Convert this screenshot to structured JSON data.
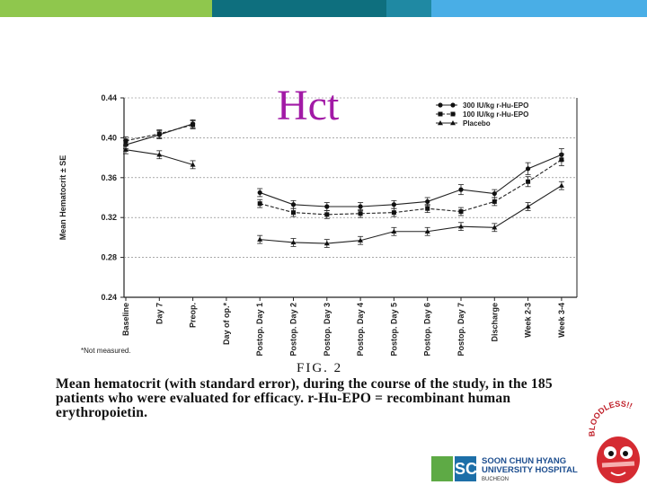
{
  "slide": {
    "title": "Hct",
    "top_bar_colors": [
      "#8fc74d",
      "#0e6f7e",
      "#1f89a3",
      "#49aee6"
    ]
  },
  "chart_data": {
    "type": "line",
    "title": "",
    "ylabel": "Mean Hematocrit ± SE",
    "xlabel": "",
    "ylim": [
      0.24,
      0.44
    ],
    "yticks": [
      "0.24",
      "0.28",
      "0.32",
      "0.36",
      "0.40",
      "0.44"
    ],
    "ytick_values": [
      0.24,
      0.28,
      0.32,
      0.36,
      0.4,
      0.44
    ],
    "grid": true,
    "legend_position": "top-right",
    "categories": [
      "Baseline",
      "Day 7",
      "Preop.",
      "Day of op.*",
      "Postop. Day 1",
      "Postop. Day 2",
      "Postop. Day 3",
      "Postop. Day 4",
      "Postop. Day 5",
      "Postop. Day 6",
      "Postop. Day 7",
      "Discharge",
      "Week 2-3",
      "Week 3-4"
    ],
    "series": [
      {
        "name": "300 IU/kg r-Hu-EPO",
        "marker": "circle",
        "dash": "solid",
        "values": [
          0.393,
          0.403,
          0.414,
          null,
          0.345,
          0.333,
          0.331,
          0.331,
          0.333,
          0.336,
          0.348,
          0.344,
          0.369,
          0.383
        ],
        "errors": [
          0.004,
          0.004,
          0.004,
          null,
          0.004,
          0.004,
          0.004,
          0.004,
          0.004,
          0.004,
          0.005,
          0.004,
          0.006,
          0.006
        ]
      },
      {
        "name": "100 IU/kg r-Hu-EPO",
        "marker": "square",
        "dash": "dash",
        "values": [
          0.397,
          0.404,
          0.413,
          null,
          0.334,
          0.325,
          0.323,
          0.324,
          0.325,
          0.329,
          0.326,
          0.336,
          0.356,
          0.378
        ],
        "errors": [
          0.004,
          0.004,
          0.004,
          null,
          0.004,
          0.004,
          0.004,
          0.004,
          0.004,
          0.004,
          0.004,
          0.004,
          0.005,
          0.006
        ]
      },
      {
        "name": "Placebo",
        "marker": "triangle",
        "dash": "solid",
        "values": [
          0.388,
          0.383,
          0.373,
          null,
          0.298,
          0.295,
          0.294,
          0.297,
          0.306,
          0.306,
          0.311,
          0.31,
          0.331,
          0.352
        ],
        "errors": [
          0.004,
          0.004,
          0.004,
          null,
          0.004,
          0.004,
          0.004,
          0.004,
          0.004,
          0.004,
          0.004,
          0.004,
          0.004,
          0.004
        ]
      }
    ],
    "footnote": "*Not measured."
  },
  "caption": {
    "fig_label": "FIG. 2",
    "text": "Mean hematocrit (with standard error), during the course of the study, in the 185 patients who were evaluated for efficacy. r-Hu-EPO = recombinant human erythropoietin."
  },
  "logo": {
    "mark": "SCH",
    "line1": "SOON CHUN HYANG",
    "line2": "UNIVERSITY HOSPITAL",
    "line3": "BUCHEON",
    "mascot_text": "BLOODLESS!!"
  }
}
